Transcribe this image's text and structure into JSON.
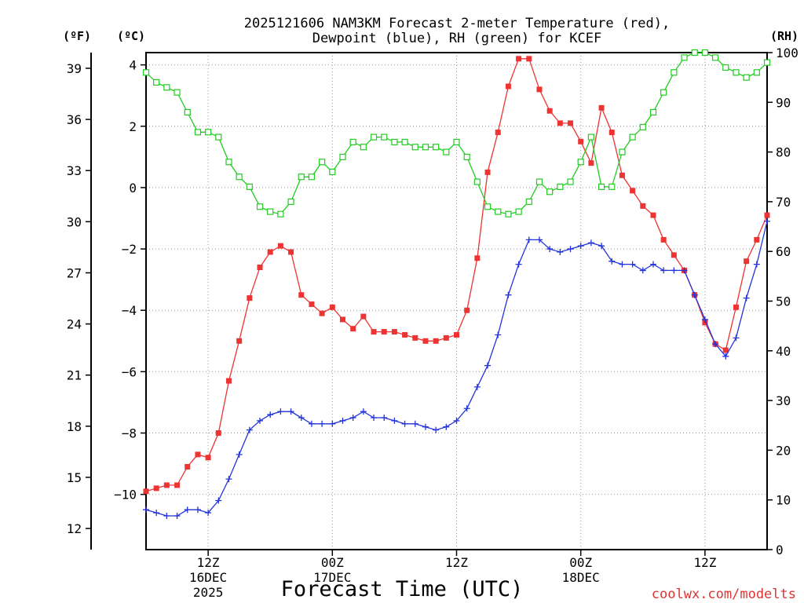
{
  "chart_data": {
    "type": "line",
    "title_line1": "2025121606 NAM3KM Forecast 2-meter Temperature (red),",
    "title_line2": "Dewpoint (blue), RH (green) for KCEF",
    "xlabel": "Forecast Time (UTC)",
    "watermark": "coolwx.com/modelts",
    "unit_f": "(ºF)",
    "unit_c": "(ºC)",
    "unit_rh": "(RH)",
    "x_range_hours": [
      0,
      60
    ],
    "x_ticks": [
      {
        "hour": 6,
        "label": "12Z",
        "date": "16DEC",
        "year": "2025"
      },
      {
        "hour": 18,
        "label": "00Z",
        "date": "17DEC",
        "year": ""
      },
      {
        "hour": 30,
        "label": "12Z",
        "date": "",
        "year": ""
      },
      {
        "hour": 42,
        "label": "00Z",
        "date": "18DEC",
        "year": ""
      },
      {
        "hour": 54,
        "label": "12Z",
        "date": "",
        "year": ""
      }
    ],
    "c_range": [
      -11.8,
      4.4
    ],
    "c_ticks": [
      4,
      2,
      0,
      -2,
      -4,
      -6,
      -8,
      -10
    ],
    "c_tick_labels": [
      "4",
      "2",
      "0",
      "−2",
      "−4",
      "−6",
      "−8",
      "−10"
    ],
    "f_ticks": [
      39,
      36,
      33,
      30,
      27,
      24,
      21,
      18,
      15,
      12
    ],
    "rh_range": [
      0,
      100
    ],
    "rh_ticks": [
      100,
      90,
      80,
      70,
      60,
      50,
      40,
      30,
      20,
      10,
      0
    ],
    "series": [
      {
        "name": "Temperature (°C)",
        "color": "#ee3333",
        "marker": "filled-square",
        "axis": "c",
        "x": [
          0,
          1,
          2,
          3,
          4,
          5,
          6,
          7,
          8,
          9,
          10,
          11,
          12,
          13,
          14,
          15,
          16,
          17,
          18,
          19,
          20,
          21,
          22,
          23,
          24,
          25,
          26,
          27,
          28,
          29,
          30,
          31,
          32,
          33,
          34,
          35,
          36,
          37,
          38,
          39,
          40,
          41,
          42,
          43,
          44,
          45,
          46,
          47,
          48,
          49,
          50,
          51,
          52,
          53,
          54,
          55,
          56,
          57,
          58,
          59,
          60
        ],
        "values": [
          -9.9,
          -9.8,
          -9.7,
          -9.7,
          -9.1,
          -8.7,
          -8.8,
          -8.0,
          -6.3,
          -5.0,
          -3.6,
          -2.6,
          -2.1,
          -1.9,
          -2.1,
          -3.5,
          -3.8,
          -4.1,
          -3.9,
          -4.3,
          -4.6,
          -4.2,
          -4.7,
          -4.7,
          -4.7,
          -4.8,
          -4.9,
          -5.0,
          -5.0,
          -4.9,
          -4.8,
          -4.0,
          -2.3,
          0.5,
          1.8,
          3.3,
          4.2,
          4.2,
          3.2,
          2.5,
          2.1,
          2.1,
          1.5,
          0.8,
          2.6,
          1.8,
          0.4,
          -0.1,
          -0.6,
          -0.9,
          -1.7,
          -2.2,
          -2.7,
          -3.5,
          -4.4,
          -5.1,
          -5.3,
          -3.9,
          -2.4,
          -1.7,
          -0.9
        ]
      },
      {
        "name": "Dewpoint (°C)",
        "color": "#2233dd",
        "marker": "plus",
        "axis": "c",
        "x": [
          0,
          1,
          2,
          3,
          4,
          5,
          6,
          7,
          8,
          9,
          10,
          11,
          12,
          13,
          14,
          15,
          16,
          17,
          18,
          19,
          20,
          21,
          22,
          23,
          24,
          25,
          26,
          27,
          28,
          29,
          30,
          31,
          32,
          33,
          34,
          35,
          36,
          37,
          38,
          39,
          40,
          41,
          42,
          43,
          44,
          45,
          46,
          47,
          48,
          49,
          50,
          51,
          52,
          53,
          54,
          55,
          56,
          57,
          58,
          59,
          60
        ],
        "values": [
          -10.5,
          -10.6,
          -10.7,
          -10.7,
          -10.5,
          -10.5,
          -10.6,
          -10.2,
          -9.5,
          -8.7,
          -7.9,
          -7.6,
          -7.4,
          -7.3,
          -7.3,
          -7.5,
          -7.7,
          -7.7,
          -7.7,
          -7.6,
          -7.5,
          -7.3,
          -7.5,
          -7.5,
          -7.6,
          -7.7,
          -7.7,
          -7.8,
          -7.9,
          -7.8,
          -7.6,
          -7.2,
          -6.5,
          -5.8,
          -4.8,
          -3.5,
          -2.5,
          -1.7,
          -1.7,
          -2.0,
          -2.1,
          -2.0,
          -1.9,
          -1.8,
          -1.9,
          -2.4,
          -2.5,
          -2.5,
          -2.7,
          -2.5,
          -2.7,
          -2.7,
          -2.7,
          -3.5,
          -4.3,
          -5.1,
          -5.5,
          -4.9,
          -3.6,
          -2.5,
          -1.1
        ]
      },
      {
        "name": "Relative Humidity (%)",
        "color": "#22cc22",
        "marker": "open-square",
        "axis": "rh",
        "x": [
          0,
          1,
          2,
          3,
          4,
          5,
          6,
          7,
          8,
          9,
          10,
          11,
          12,
          13,
          14,
          15,
          16,
          17,
          18,
          19,
          20,
          21,
          22,
          23,
          24,
          25,
          26,
          27,
          28,
          29,
          30,
          31,
          32,
          33,
          34,
          35,
          36,
          37,
          38,
          39,
          40,
          41,
          42,
          43,
          44,
          45,
          46,
          47,
          48,
          49,
          50,
          51,
          52,
          53,
          54,
          55,
          56,
          57,
          58,
          59,
          60
        ],
        "values": [
          96,
          94,
          93,
          92,
          88,
          84,
          84,
          83,
          78,
          75,
          73,
          69,
          68,
          67.5,
          70,
          75,
          75,
          78,
          76,
          79,
          82,
          81,
          83,
          83,
          82,
          82,
          81,
          81,
          81,
          80,
          82,
          79,
          74,
          69,
          68,
          67.5,
          68,
          70,
          74,
          72,
          73,
          74,
          78,
          83,
          73,
          73,
          80,
          83,
          85,
          88,
          92,
          96,
          99,
          100,
          100,
          99,
          97,
          96,
          95,
          96,
          98
        ]
      }
    ]
  }
}
